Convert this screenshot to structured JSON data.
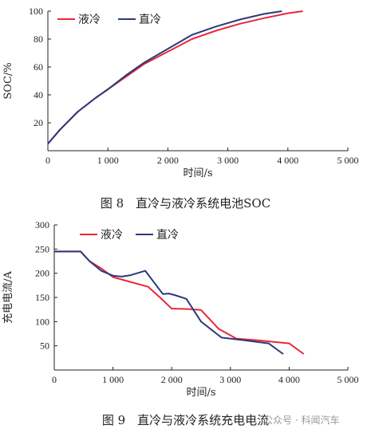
{
  "chart_data": [
    {
      "type": "line",
      "caption": "图 8　直冷与液冷系统电池SOC",
      "xlabel": "时间/s",
      "ylabel": "SOC/%",
      "xlim": [
        0,
        5000
      ],
      "ylim": [
        0,
        100
      ],
      "xticks": [
        "0",
        "1 000",
        "2 000",
        "3 000",
        "4 000",
        "5 000"
      ],
      "yticks": [
        "20",
        "40",
        "60",
        "80",
        "100"
      ],
      "legend_position": "top-left",
      "series": [
        {
          "name": "液冷",
          "color": "#e8283a",
          "x": [
            0,
            200,
            500,
            800,
            1000,
            1300,
            1600,
            2000,
            2400,
            2800,
            3200,
            3600,
            4000,
            4250
          ],
          "y": [
            5,
            15,
            28,
            38,
            44,
            53,
            62,
            71,
            80,
            86,
            91,
            95,
            98.5,
            100
          ]
        },
        {
          "name": "直冷",
          "color": "#2b3a7a",
          "x": [
            0,
            200,
            500,
            800,
            1000,
            1300,
            1600,
            2000,
            2400,
            2800,
            3200,
            3600,
            3900
          ],
          "y": [
            5,
            15,
            28,
            38,
            44,
            54,
            63,
            73,
            83,
            89,
            94,
            98,
            100
          ]
        }
      ]
    },
    {
      "type": "line",
      "caption": "图 9　直冷与液冷系统充电电流",
      "xlabel": "时间/s",
      "ylabel": "充电电流/A",
      "xlim": [
        0,
        5000
      ],
      "ylim": [
        0,
        300
      ],
      "xticks": [
        "0",
        "1 000",
        "2 000",
        "3 000",
        "4 000",
        "5 000"
      ],
      "yticks": [
        "50",
        "100",
        "150",
        "200",
        "250",
        "300"
      ],
      "legend_position": "top-center",
      "series": [
        {
          "name": "液冷",
          "color": "#e8283a",
          "x": [
            0,
            450,
            600,
            800,
            1000,
            1300,
            1600,
            1800,
            2000,
            2300,
            2500,
            2800,
            3100,
            3500,
            4000,
            4250
          ],
          "y": [
            245,
            245,
            225,
            210,
            192,
            182,
            172,
            150,
            127,
            126,
            124,
            85,
            65,
            61,
            55,
            33
          ]
        },
        {
          "name": "直冷",
          "color": "#2b3a7a",
          "x": [
            0,
            450,
            600,
            800,
            1000,
            1150,
            1300,
            1550,
            1850,
            1950,
            2050,
            2250,
            2500,
            2850,
            3200,
            3650,
            3900
          ],
          "y": [
            245,
            245,
            225,
            205,
            195,
            193,
            196,
            205,
            157,
            158,
            155,
            147,
            100,
            67,
            62,
            55,
            33
          ]
        }
      ]
    }
  ],
  "watermark": "公众号 · 科闻汽车"
}
